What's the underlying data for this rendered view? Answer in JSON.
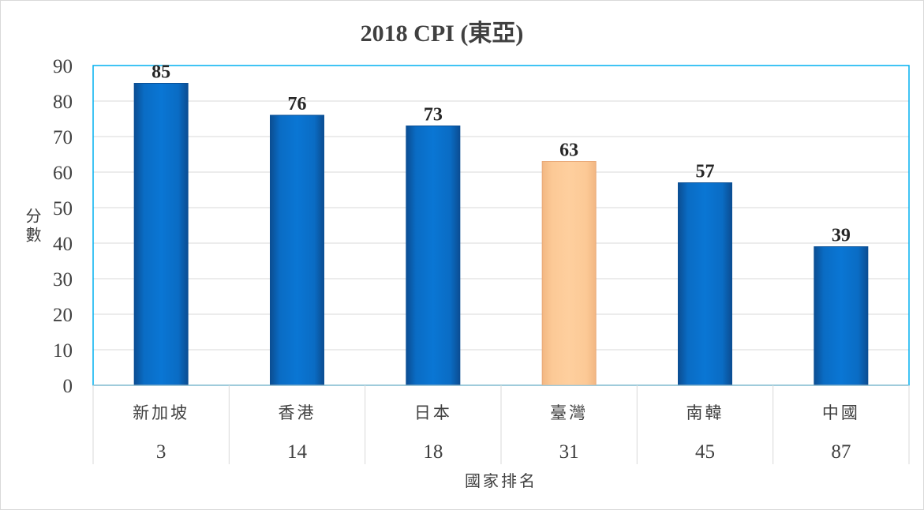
{
  "chart_data": {
    "type": "bar",
    "title": "2018 CPI (東亞)",
    "ylabel": "分數",
    "xlabel": "國家排名",
    "categories": [
      "新加坡",
      "香港",
      "日本",
      "臺灣",
      "南韓",
      "中國"
    ],
    "ranks": [
      "3",
      "14",
      "18",
      "31",
      "45",
      "87"
    ],
    "values": [
      85,
      76,
      73,
      63,
      57,
      39
    ],
    "highlight_index": 3,
    "ylim": [
      0,
      90
    ],
    "yticks": [
      0,
      10,
      20,
      30,
      40,
      50,
      60,
      70,
      80,
      90
    ],
    "grid": true,
    "legend": "none",
    "colors": {
      "bar": "#0a70c9",
      "bar_edge": "#0a4f95",
      "highlight": "#fdcb98",
      "highlight_edge": "#e9a978",
      "grid": "#d9d9d9",
      "plot_border": "#00b0f0",
      "text": "#404040"
    }
  }
}
